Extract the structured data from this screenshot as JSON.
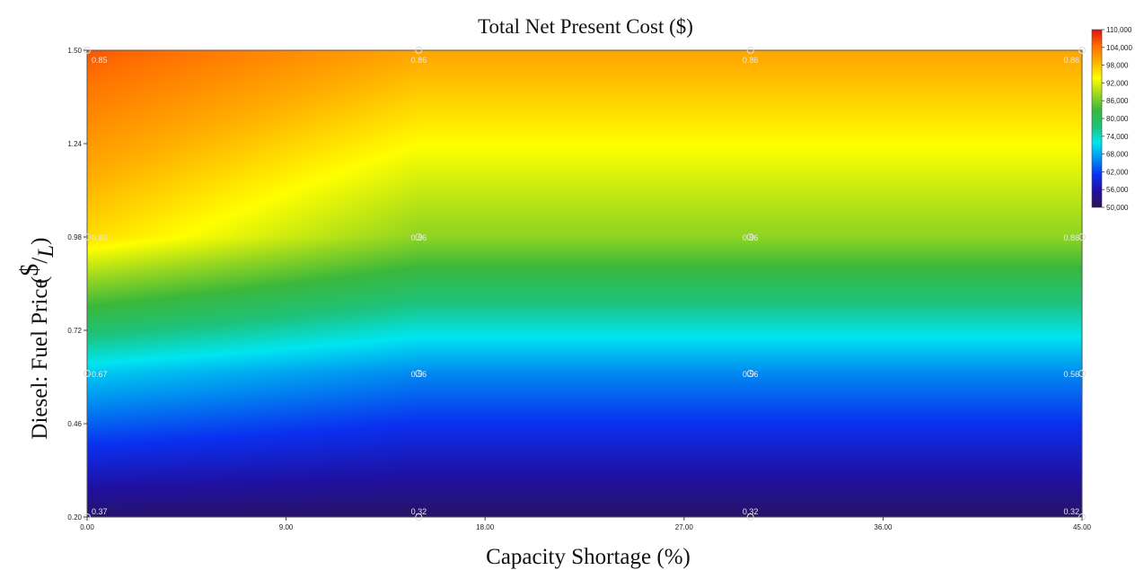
{
  "chart_data": {
    "type": "heatmap",
    "title": "Total Net Present Cost ($)",
    "xlabel": "Capacity Shortage (%)",
    "ylabel": "Diesel: Fuel Price",
    "ylabel_unit_num": "$",
    "ylabel_unit_den": "L",
    "xlim": [
      0,
      45
    ],
    "ylim": [
      0.2,
      1.5
    ],
    "x_ticks": [
      "0.00",
      "9.00",
      "18.00",
      "27.00",
      "36.00",
      "45.00"
    ],
    "x_tick_values": [
      0,
      9,
      18,
      27,
      36,
      45
    ],
    "y_ticks": [
      "0.20",
      "0.46",
      "0.72",
      "0.98",
      "1.24",
      "1.50"
    ],
    "y_tick_values": [
      0.2,
      0.46,
      0.72,
      0.98,
      1.24,
      1.5
    ],
    "colorbar": {
      "min": 50000,
      "max": 110000,
      "ticks": [
        "110,000",
        "104,000",
        "98,000",
        "92,000",
        "86,000",
        "80,000",
        "74,000",
        "68,000",
        "62,000",
        "56,000",
        "50,000"
      ],
      "tick_values": [
        110000,
        104000,
        98000,
        92000,
        86000,
        80000,
        74000,
        68000,
        62000,
        56000,
        50000
      ],
      "colors": [
        "#2a1550",
        "#2010a0",
        "#0a30f0",
        "#0090f0",
        "#00e6f0",
        "#1ec27a",
        "#3ab83c",
        "#9ad820",
        "#ffff00",
        "#ffb000",
        "#ff7000",
        "#dc1010"
      ]
    },
    "sample_grid": {
      "x": [
        0,
        15,
        30,
        45
      ],
      "y": [
        0.2,
        0.6,
        0.98,
        1.5
      ],
      "z": [
        [
          52000,
          51500,
          51500,
          51500
        ],
        [
          70000,
          66000,
          66000,
          66000
        ],
        [
          96000,
          87500,
          87500,
          87500
        ],
        [
          106000,
          100000,
          100000,
          100000
        ]
      ]
    },
    "point_labels": [
      {
        "x": 0,
        "y": 1.5,
        "text": "0.85"
      },
      {
        "x": 15,
        "y": 1.5,
        "text": "0.86"
      },
      {
        "x": 30,
        "y": 1.5,
        "text": "0.86"
      },
      {
        "x": 45,
        "y": 1.5,
        "text": "0.86"
      },
      {
        "x": 0,
        "y": 0.98,
        "text": "0.86"
      },
      {
        "x": 15,
        "y": 0.98,
        "text": "0.86"
      },
      {
        "x": 30,
        "y": 0.98,
        "text": "0.86"
      },
      {
        "x": 45,
        "y": 0.98,
        "text": "0.86"
      },
      {
        "x": 0,
        "y": 0.6,
        "text": "0.67"
      },
      {
        "x": 15,
        "y": 0.6,
        "text": "0.56"
      },
      {
        "x": 30,
        "y": 0.6,
        "text": "0.56"
      },
      {
        "x": 45,
        "y": 0.6,
        "text": "0.56"
      },
      {
        "x": 0,
        "y": 0.2,
        "text": "0.37"
      },
      {
        "x": 15,
        "y": 0.2,
        "text": "0.32"
      },
      {
        "x": 30,
        "y": 0.2,
        "text": "0.32"
      },
      {
        "x": 45,
        "y": 0.2,
        "text": "0.32"
      }
    ]
  }
}
